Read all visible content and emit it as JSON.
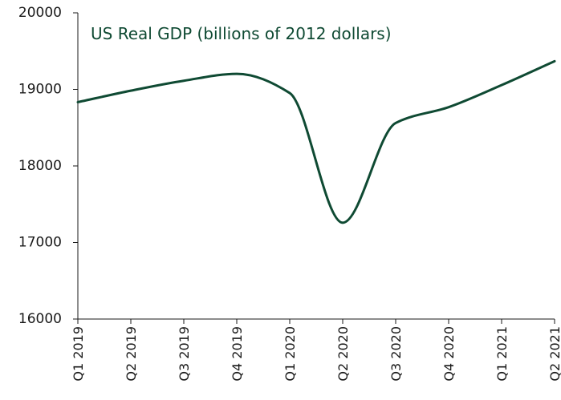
{
  "chart_data": {
    "type": "line",
    "title": "US Real GDP (billions of 2012 dollars)",
    "xlabel": "",
    "ylabel": "",
    "categories": [
      "Q1 2019",
      "Q2 2019",
      "Q3 2019",
      "Q4 2019",
      "Q1 2020",
      "Q2 2020",
      "Q3 2020",
      "Q4 2020",
      "Q1 2021",
      "Q2 2021"
    ],
    "series": [
      {
        "values": [
          18833,
          18983,
          19113,
          19203,
          18952,
          17258,
          18561,
          18768,
          19056,
          19368
        ]
      }
    ],
    "ylim": [
      16000,
      20000
    ],
    "yticks": [
      "16000",
      "17000",
      "18000",
      "19000",
      "20000"
    ],
    "grid": false,
    "legend": "none"
  },
  "colors": {
    "line": "#0f4a33",
    "title": "#0f4a33",
    "axis": "#1a1a1a"
  }
}
